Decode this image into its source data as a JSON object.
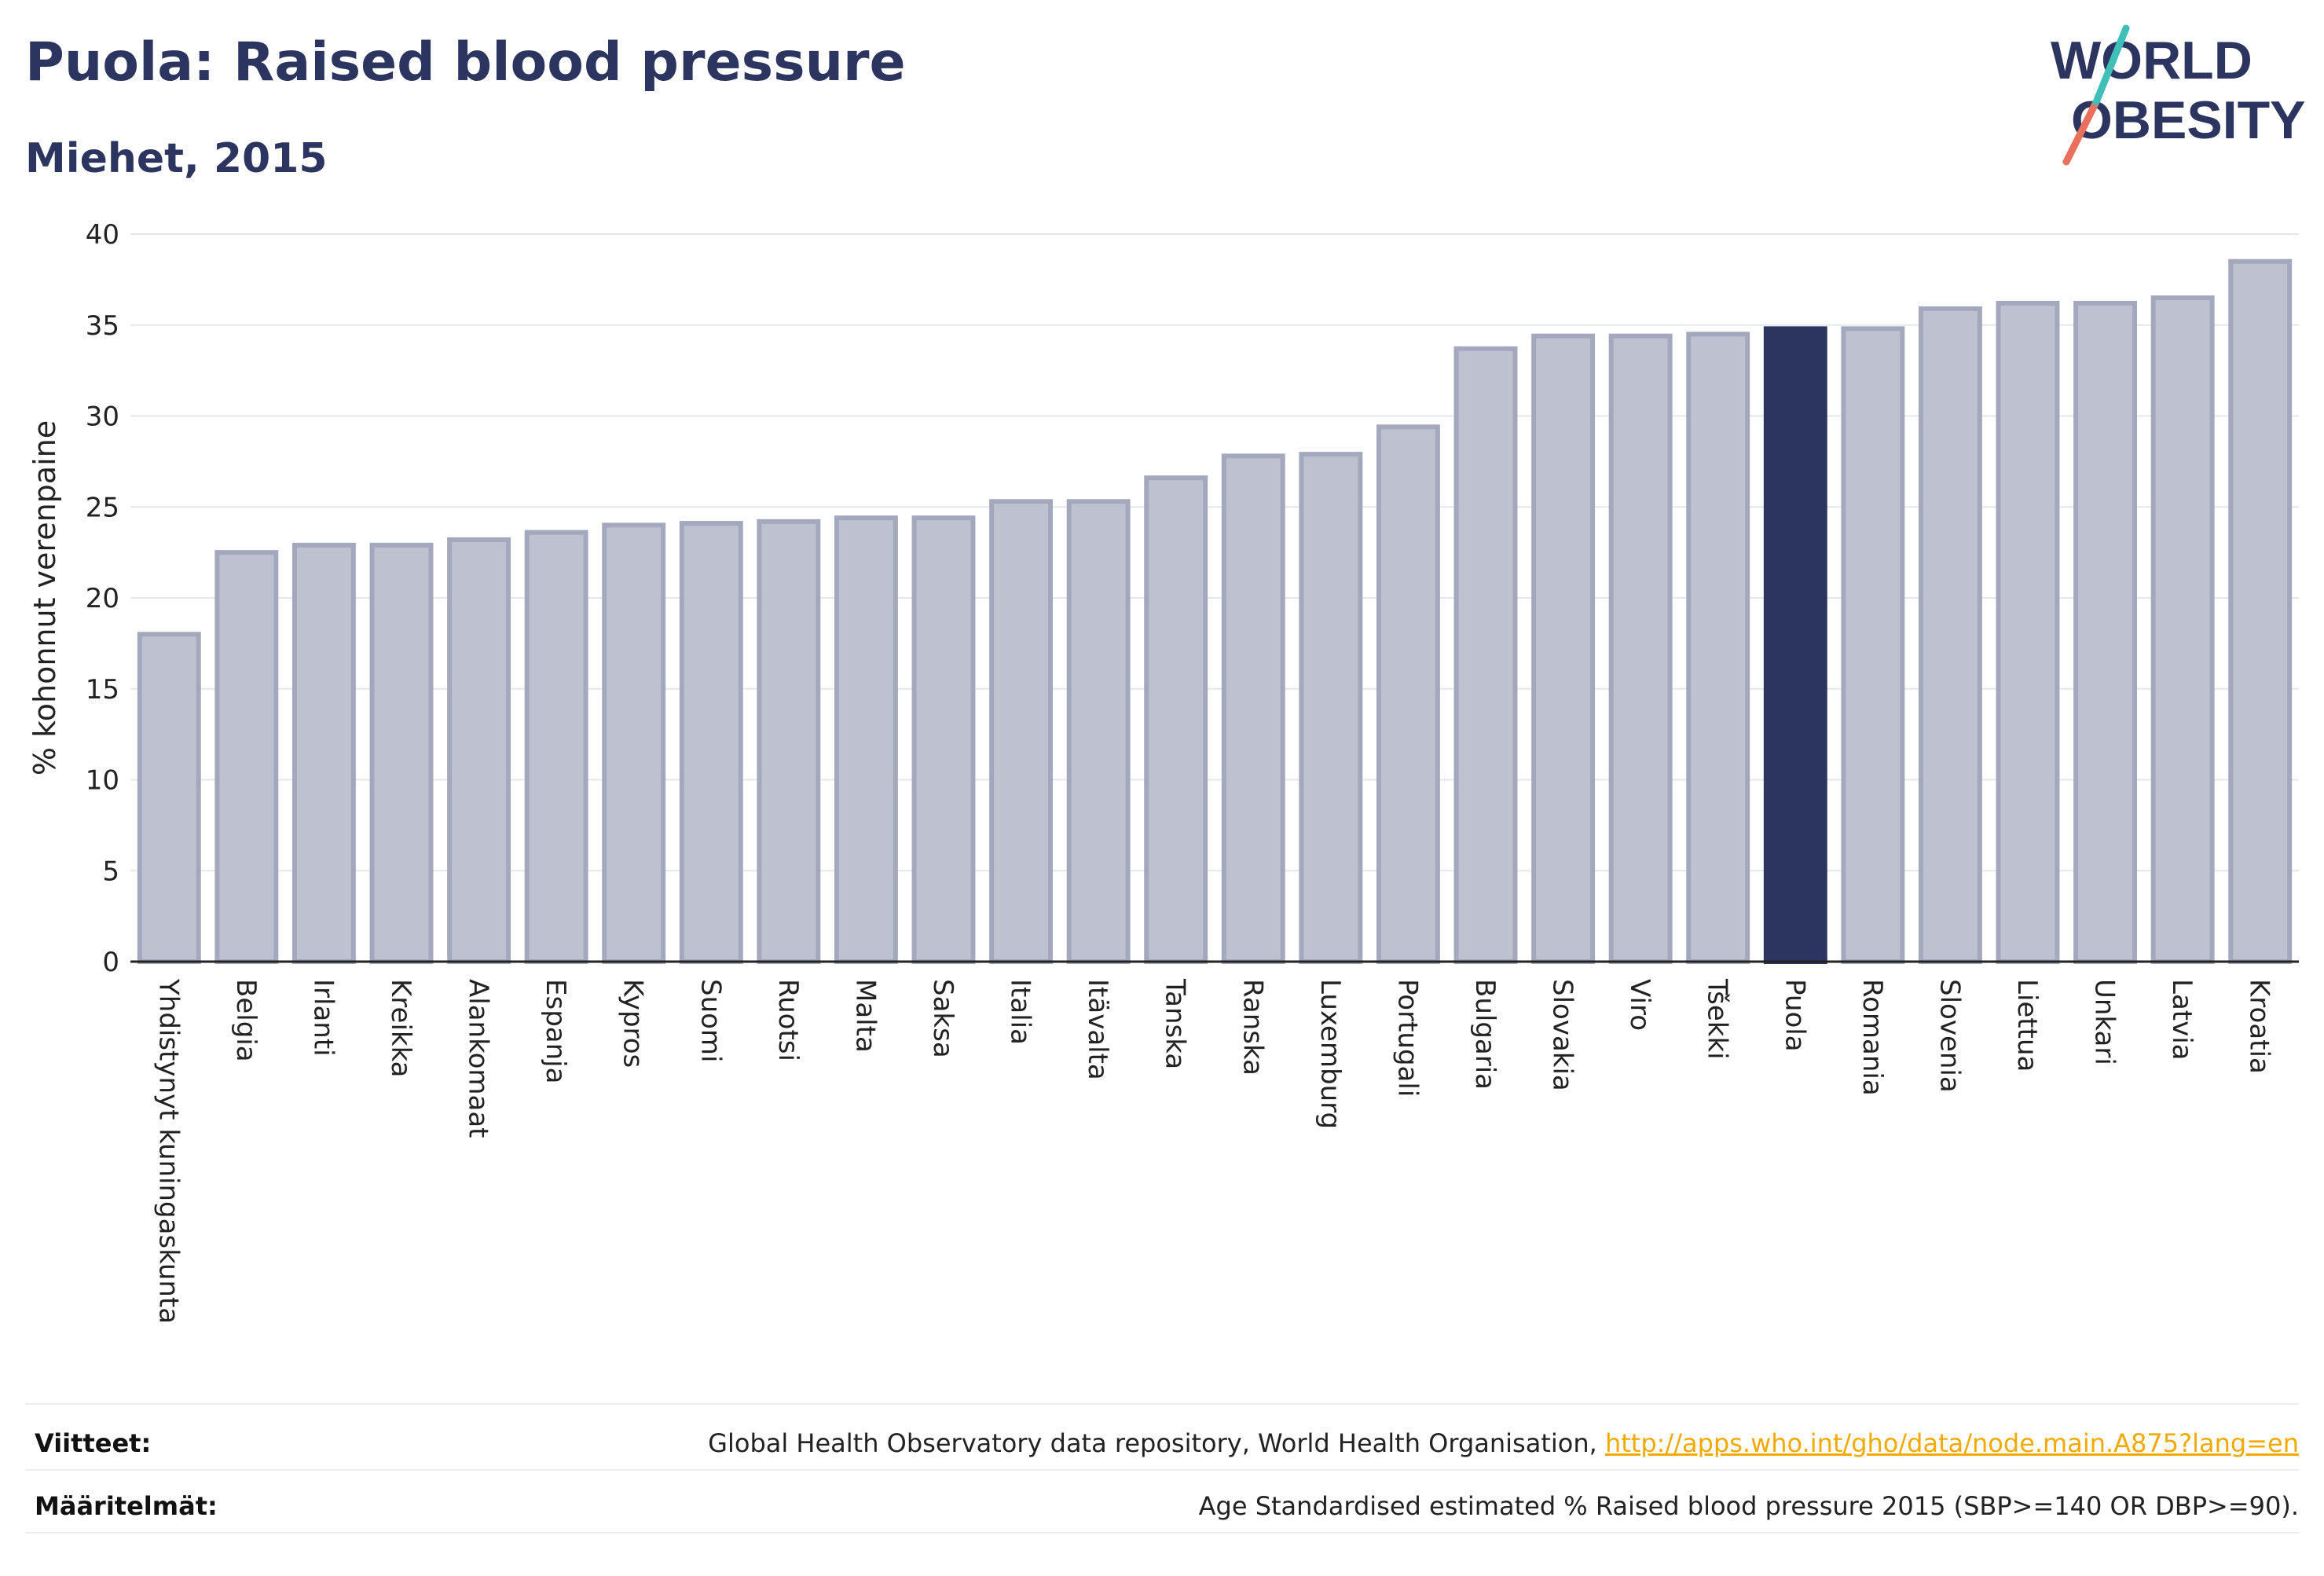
{
  "title": "Puola: Raised blood pressure",
  "subtitle": "Miehet, 2015",
  "logo": {
    "line1": "WORLD",
    "line2": "OBESITY"
  },
  "colors": {
    "bar": "#bec1cf",
    "bar_border": "#a4a8bd",
    "highlight": "#2b3560",
    "grid": "#e6e7ee",
    "axis": "#222222",
    "link": "#f2a900"
  },
  "chart_data": {
    "type": "bar",
    "ylabel": "% kohonnut verenpaine",
    "xlabel": "",
    "ylim": [
      0,
      40
    ],
    "yticks": [
      0,
      5,
      10,
      15,
      20,
      25,
      30,
      35,
      40
    ],
    "grid": true,
    "highlight": "Puola",
    "categories": [
      "Yhdistynyt kuningaskunta",
      "Belgia",
      "Irlanti",
      "Kreikka",
      "Alankomaat",
      "Espanja",
      "Kypros",
      "Suomi",
      "Ruotsi",
      "Malta",
      "Saksa",
      "Italia",
      "Itävalta",
      "Tanska",
      "Ranska",
      "Luxemburg",
      "Portugali",
      "Bulgaria",
      "Slovakia",
      "Viro",
      "Tšekki",
      "Puola",
      "Romania",
      "Slovenia",
      "Liettua",
      "Unkari",
      "Latvia",
      "Kroatia"
    ],
    "values": [
      18.0,
      22.5,
      22.9,
      22.9,
      23.2,
      23.6,
      24.0,
      24.1,
      24.2,
      24.4,
      24.4,
      25.3,
      25.3,
      26.6,
      27.8,
      27.9,
      29.4,
      33.7,
      34.4,
      34.4,
      34.5,
      34.8,
      34.8,
      35.9,
      36.2,
      36.2,
      36.5,
      38.5
    ]
  },
  "footer": {
    "references_label": "Viitteet:",
    "references_text": "Global Health Observatory data repository, World Health Organisation, ",
    "references_link": "http://apps.who.int/gho/data/node.main.A875?lang=en",
    "definitions_label": "Määritelmät:",
    "definitions_text": "Age Standardised estimated % Raised blood pressure 2015 (SBP>=140 OR DBP>=90)."
  }
}
